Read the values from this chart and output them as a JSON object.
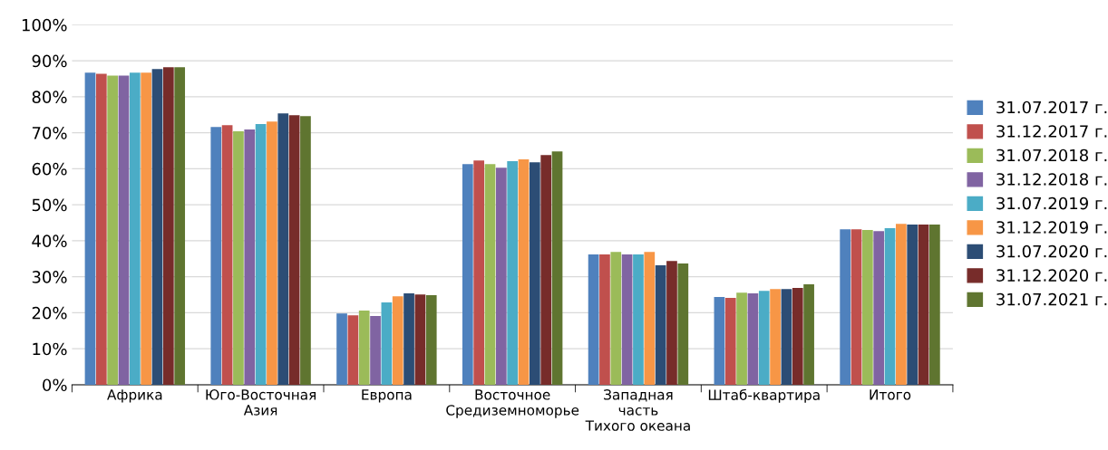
{
  "chart_data": {
    "type": "bar",
    "categories": [
      "Африка",
      "Юго-Восточная\nАзия",
      "Европа",
      "Восточное\nСредиземноморье",
      "Западная\nчасть\nТихого океана",
      "Штаб-квартира",
      "Итого"
    ],
    "series": [
      {
        "name": "31.07.2017 г.",
        "color": "#4f81bd",
        "values": [
          86.7,
          71.6,
          19.8,
          61.3,
          36.2,
          24.4,
          43.2
        ]
      },
      {
        "name": "31.12.2017 г.",
        "color": "#c0504d",
        "values": [
          86.4,
          72.1,
          19.3,
          62.3,
          36.2,
          24.1,
          43.2
        ]
      },
      {
        "name": "31.07.2018 г.",
        "color": "#9bbb59",
        "values": [
          85.9,
          70.4,
          20.6,
          61.3,
          36.9,
          25.6,
          43.0
        ]
      },
      {
        "name": "31.12.2018 г.",
        "color": "#8064a2",
        "values": [
          85.9,
          70.9,
          19.1,
          60.3,
          36.2,
          25.4,
          42.7
        ]
      },
      {
        "name": "31.07.2019 г.",
        "color": "#4bacc6",
        "values": [
          86.7,
          72.4,
          22.9,
          62.1,
          36.2,
          26.1,
          43.5
        ]
      },
      {
        "name": "31.12.2019 г.",
        "color": "#f79646",
        "values": [
          86.7,
          73.1,
          24.6,
          62.6,
          36.9,
          26.6,
          44.7
        ]
      },
      {
        "name": "31.07.2020 г.",
        "color": "#2c4d75",
        "values": [
          87.7,
          75.4,
          25.4,
          61.8,
          33.2,
          26.6,
          44.5
        ]
      },
      {
        "name": "31.12.2020 г.",
        "color": "#772c2a",
        "values": [
          88.2,
          74.9,
          25.1,
          63.8,
          34.4,
          26.9,
          44.5
        ]
      },
      {
        "name": "31.07.2021 г.",
        "color": "#5f7530",
        "values": [
          88.2,
          74.6,
          24.9,
          64.8,
          33.7,
          27.9,
          44.5
        ]
      }
    ],
    "ylim": [
      0,
      100
    ],
    "yticks": [
      {
        "value": 0,
        "label": "0%"
      },
      {
        "value": 10,
        "label": "10%"
      },
      {
        "value": 20,
        "label": "20%"
      },
      {
        "value": 30,
        "label": "30%"
      },
      {
        "value": 40,
        "label": "40%"
      },
      {
        "value": 50,
        "label": "50%"
      },
      {
        "value": 60,
        "label": "60%"
      },
      {
        "value": 70,
        "label": "70%"
      },
      {
        "value": 80,
        "label": "80%"
      },
      {
        "value": 90,
        "label": "90%"
      },
      {
        "value": 100,
        "label": "100%"
      }
    ],
    "grid": "y",
    "legend": "right"
  }
}
